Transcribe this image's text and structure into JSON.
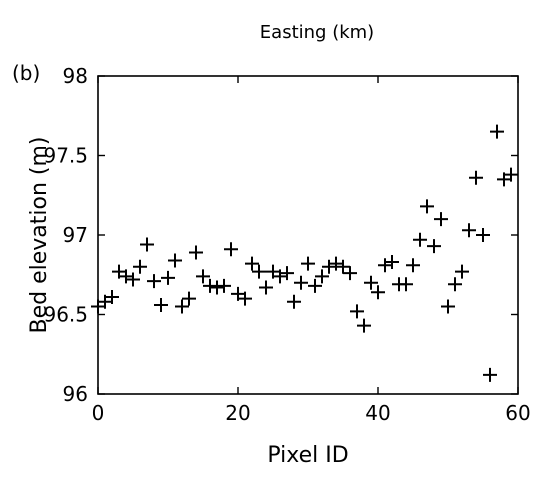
{
  "chart_data": {
    "type": "scatter",
    "panel_label": "(b)",
    "top_axis_label": "Easting (km)",
    "xlabel": "Pixel ID",
    "ylabel": "Bed elevation (m)",
    "xlim": [
      0,
      60
    ],
    "ylim": [
      96,
      98
    ],
    "x_ticks": [
      0,
      20,
      40,
      60
    ],
    "y_ticks": [
      96,
      96.5,
      97,
      97.5,
      98
    ],
    "x_tick_labels": [
      "0",
      "20",
      "40",
      "60"
    ],
    "y_tick_labels": [
      "96",
      "96.5",
      "97",
      "97.5",
      "98"
    ],
    "marker": "plus",
    "grid": false,
    "series": [
      {
        "color": "#000000",
        "x": [
          0,
          1,
          2,
          3,
          4,
          5,
          6,
          7,
          8,
          9,
          10,
          11,
          12,
          13,
          14,
          15,
          16,
          17,
          18,
          19,
          20,
          21,
          22,
          23,
          24,
          25,
          26,
          27,
          28,
          29,
          30,
          31,
          32,
          33,
          34,
          35,
          36,
          37,
          38,
          39,
          40,
          41,
          42,
          43,
          44,
          45,
          46,
          47,
          48,
          49,
          50,
          51,
          52,
          53,
          54,
          55,
          56,
          57,
          58,
          59
        ],
        "y": [
          96.55,
          96.58,
          96.61,
          96.77,
          96.74,
          96.72,
          96.8,
          96.94,
          96.71,
          96.56,
          96.73,
          96.84,
          96.55,
          96.6,
          96.89,
          96.74,
          96.68,
          96.67,
          96.68,
          96.91,
          96.63,
          96.6,
          96.82,
          96.77,
          96.67,
          96.77,
          96.74,
          96.76,
          96.58,
          96.7,
          96.82,
          96.68,
          96.74,
          96.8,
          96.82,
          96.8,
          96.76,
          96.52,
          96.43,
          96.7,
          96.64,
          96.81,
          96.83,
          96.69,
          96.69,
          96.81,
          96.97,
          97.18,
          96.93,
          97.1,
          96.55,
          96.69,
          96.77,
          97.03,
          97.36,
          97.0,
          96.12,
          97.65,
          97.35,
          97.38
        ]
      }
    ]
  }
}
